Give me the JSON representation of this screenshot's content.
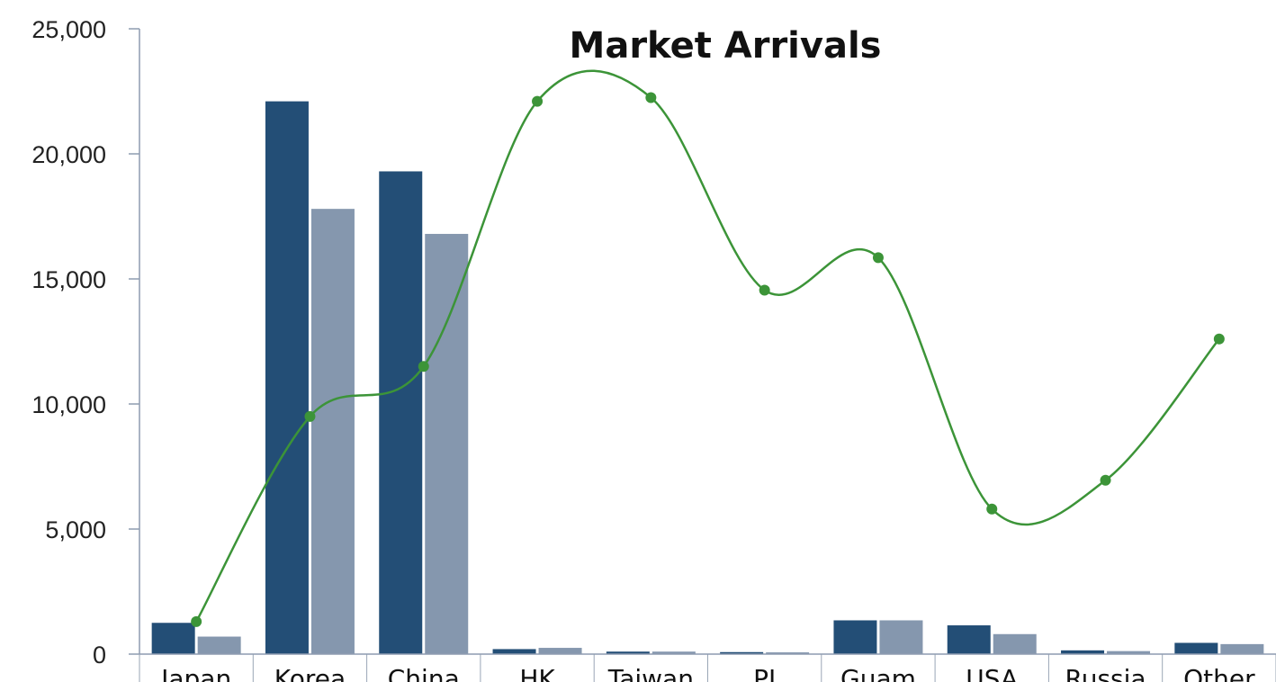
{
  "chart_data": {
    "type": "bar",
    "title": "Market Arrivals",
    "categories": [
      "Japan",
      "Korea",
      "China",
      "HK",
      "Taiwan",
      "PI",
      "Guam",
      "USA",
      "Russia",
      "Other"
    ],
    "series": [
      {
        "type": "bar",
        "values": [
          1250,
          22100,
          19300,
          200,
          100,
          80,
          1350,
          1150,
          150,
          450
        ],
        "color": "#234e76"
      },
      {
        "type": "bar",
        "values": [
          700,
          17800,
          16800,
          250,
          100,
          70,
          1350,
          800,
          120,
          400
        ],
        "color": "#8597ae"
      },
      {
        "type": "line",
        "values": [
          1300,
          9500,
          11500,
          22100,
          22250,
          14550,
          15850,
          5800,
          6950,
          12600
        ],
        "color": "#3c9438"
      }
    ],
    "yticks": [
      "0",
      "5,000",
      "10,000",
      "15,000",
      "20,000",
      "25,000"
    ],
    "ylim": [
      0,
      25000
    ],
    "xlabel": "",
    "ylabel": "",
    "grid": false,
    "legend": "none"
  }
}
